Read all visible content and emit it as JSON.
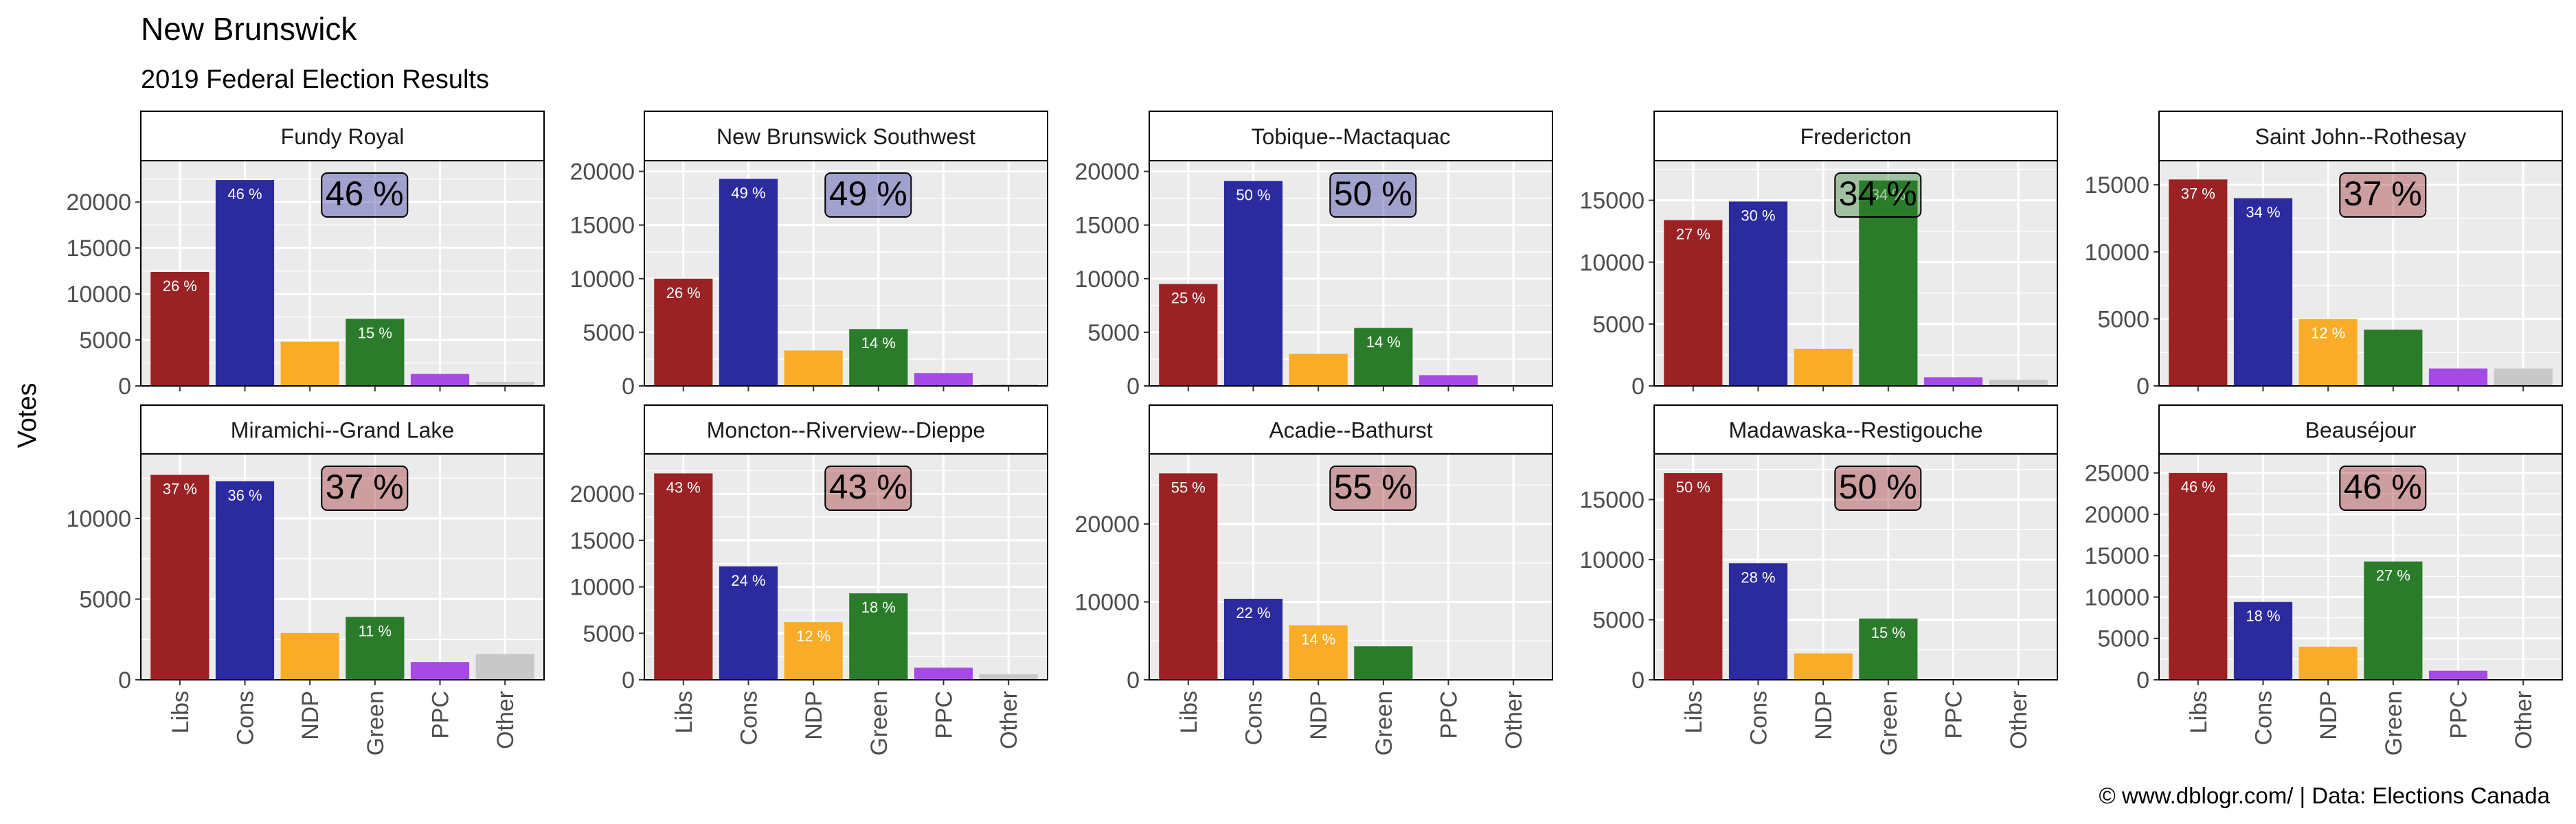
{
  "title": "New Brunswick",
  "subtitle": "2019 Federal Election Results",
  "ylabel": "Votes",
  "caption": "© www.dblogr.com/  |  Data: Elections Canada",
  "colors": {
    "Libs": "#9b2224",
    "Cons": "#2b2a9e",
    "NDP": "#f9ac28",
    "Green": "#2b7c2a",
    "PPC": "#a64ae6",
    "Other": "#c8c8c8",
    "panel_bg": "#ebebeb",
    "strip_bg": "#ffffff"
  },
  "chart_data": {
    "type": "bar",
    "facet": "riding",
    "layout": {
      "rows": 2,
      "cols": 5
    },
    "categories": [
      "Libs",
      "Cons",
      "NDP",
      "Green",
      "PPC",
      "Other"
    ],
    "panels": [
      {
        "name": "Fundy Royal",
        "winner_label": "46 %",
        "winner_party": "Cons",
        "values": [
          12400,
          22400,
          4800,
          7300,
          1300,
          450
        ],
        "labels": [
          "26 %",
          "46 %",
          "",
          "15 %",
          "",
          ""
        ],
        "ylim": [
          0,
          24500
        ],
        "yticks": [
          0,
          5000,
          10000,
          15000,
          20000
        ]
      },
      {
        "name": "New Brunswick Southwest",
        "winner_label": "49 %",
        "winner_party": "Cons",
        "values": [
          10000,
          19300,
          3300,
          5300,
          1200,
          150
        ],
        "labels": [
          "26 %",
          "49 %",
          "",
          "14 %",
          "",
          ""
        ],
        "ylim": [
          0,
          21000
        ],
        "yticks": [
          0,
          5000,
          10000,
          15000,
          20000
        ]
      },
      {
        "name": "Tobique--Mactaquac",
        "winner_label": "50 %",
        "winner_party": "Cons",
        "values": [
          9500,
          19100,
          3000,
          5400,
          1000,
          0
        ],
        "labels": [
          "25 %",
          "50 %",
          "",
          "14 %",
          "",
          ""
        ],
        "ylim": [
          0,
          21000
        ],
        "yticks": [
          0,
          5000,
          10000,
          15000,
          20000
        ]
      },
      {
        "name": "Fredericton",
        "winner_label": "34 %",
        "winner_party": "Green",
        "values": [
          13400,
          14900,
          3000,
          16600,
          700,
          500
        ],
        "labels": [
          "27 %",
          "30 %",
          "",
          "34 %",
          "",
          ""
        ],
        "ylim": [
          0,
          18200
        ],
        "yticks": [
          0,
          5000,
          10000,
          15000
        ]
      },
      {
        "name": "Saint John--Rothesay",
        "winner_label": "37 %",
        "winner_party": "Libs",
        "values": [
          15400,
          14000,
          5000,
          4200,
          1300,
          1300
        ],
        "labels": [
          "37 %",
          "34 %",
          "12 %",
          "",
          "",
          ""
        ],
        "ylim": [
          0,
          16800
        ],
        "yticks": [
          0,
          5000,
          10000,
          15000
        ]
      },
      {
        "name": "Miramichi--Grand Lake",
        "winner_label": "37 %",
        "winner_party": "Libs",
        "values": [
          12700,
          12300,
          2900,
          3900,
          1100,
          1600
        ],
        "labels": [
          "37 %",
          "36 %",
          "",
          "11 %",
          "",
          ""
        ],
        "ylim": [
          0,
          14000
        ],
        "yticks": [
          0,
          5000,
          10000
        ]
      },
      {
        "name": "Moncton--Riverview--Dieppe",
        "winner_label": "43 %",
        "winner_party": "Libs",
        "values": [
          22200,
          12200,
          6200,
          9300,
          1300,
          600
        ],
        "labels": [
          "43 %",
          "24 %",
          "12 %",
          "18 %",
          "",
          ""
        ],
        "ylim": [
          0,
          24300
        ],
        "yticks": [
          0,
          5000,
          10000,
          15000,
          20000
        ]
      },
      {
        "name": "Acadie--Bathurst",
        "winner_label": "55 %",
        "winner_party": "Libs",
        "values": [
          26500,
          10400,
          7000,
          4300,
          0,
          0
        ],
        "labels": [
          "55 %",
          "22 %",
          "14 %",
          "",
          "",
          ""
        ],
        "ylim": [
          0,
          29000
        ],
        "yticks": [
          0,
          10000,
          20000
        ]
      },
      {
        "name": "Madawaska--Restigouche",
        "winner_label": "50 %",
        "winner_party": "Libs",
        "values": [
          17200,
          9700,
          2200,
          5100,
          0,
          0
        ],
        "labels": [
          "50 %",
          "28 %",
          "",
          "15 %",
          "",
          ""
        ],
        "ylim": [
          0,
          18800
        ],
        "yticks": [
          0,
          5000,
          10000,
          15000
        ]
      },
      {
        "name": "Beauséjour",
        "winner_label": "46 %",
        "winner_party": "Libs",
        "values": [
          25000,
          9400,
          4000,
          14300,
          1100,
          0
        ],
        "labels": [
          "46 %",
          "18 %",
          "",
          "27 %",
          "",
          ""
        ],
        "ylim": [
          0,
          27300
        ],
        "yticks": [
          0,
          5000,
          10000,
          15000,
          20000,
          25000
        ]
      }
    ]
  }
}
